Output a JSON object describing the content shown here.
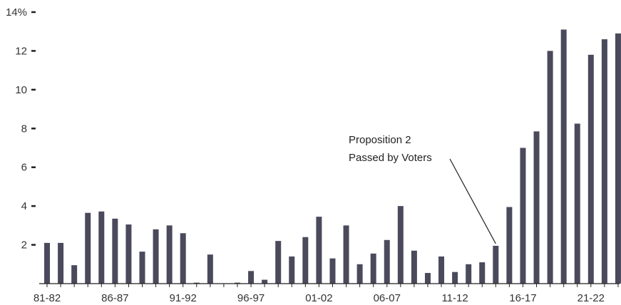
{
  "chart_data": {
    "type": "bar",
    "title": "",
    "xlabel": "",
    "ylabel": "",
    "ylim": [
      0,
      14
    ],
    "y_ticks": [
      {
        "value": 2,
        "label": "2"
      },
      {
        "value": 4,
        "label": "4"
      },
      {
        "value": 6,
        "label": "6"
      },
      {
        "value": 8,
        "label": "8"
      },
      {
        "value": 10,
        "label": "10"
      },
      {
        "value": 12,
        "label": "12"
      },
      {
        "value": 14,
        "label": "14%"
      }
    ],
    "categories": [
      "81-82",
      "82-83",
      "83-84",
      "84-85",
      "85-86",
      "86-87",
      "87-88",
      "88-89",
      "89-90",
      "90-91",
      "91-92",
      "92-93",
      "93-94",
      "94-95",
      "95-96",
      "96-97",
      "97-98",
      "98-99",
      "99-00",
      "00-01",
      "01-02",
      "02-03",
      "03-04",
      "04-05",
      "05-06",
      "06-07",
      "07-08",
      "08-09",
      "09-10",
      "10-11",
      "11-12",
      "12-13",
      "13-14",
      "14-15",
      "15-16",
      "16-17",
      "17-18",
      "18-19",
      "19-20",
      "20-21",
      "21-22",
      "22-23",
      "23-24"
    ],
    "values": [
      2.1,
      2.1,
      0.95,
      3.65,
      3.72,
      3.35,
      3.05,
      1.65,
      2.8,
      3.0,
      2.6,
      0.05,
      1.5,
      0.0,
      0.05,
      0.65,
      0.2,
      2.2,
      1.4,
      2.4,
      3.45,
      1.3,
      3.0,
      1.0,
      1.55,
      2.25,
      4.0,
      1.7,
      0.55,
      1.4,
      0.6,
      1.0,
      1.1,
      1.95,
      3.95,
      7.0,
      7.85,
      12.0,
      13.1,
      8.25,
      11.8,
      12.6,
      12.9
    ],
    "x_tick_labels": [
      {
        "index": 0,
        "label": "81-82"
      },
      {
        "index": 5,
        "label": "86-87"
      },
      {
        "index": 10,
        "label": "91-92"
      },
      {
        "index": 15,
        "label": "96-97"
      },
      {
        "index": 20,
        "label": "01-02"
      },
      {
        "index": 25,
        "label": "06-07"
      },
      {
        "index": 30,
        "label": "11-12"
      },
      {
        "index": 35,
        "label": "16-17"
      },
      {
        "index": 40,
        "label": "21-22"
      }
    ],
    "bar_color": "#4a4a5c",
    "annotation": {
      "lines": [
        "Proposition 2",
        "Passed by Voters"
      ],
      "points_to_index": 33
    },
    "grid": false,
    "legend": "none"
  }
}
